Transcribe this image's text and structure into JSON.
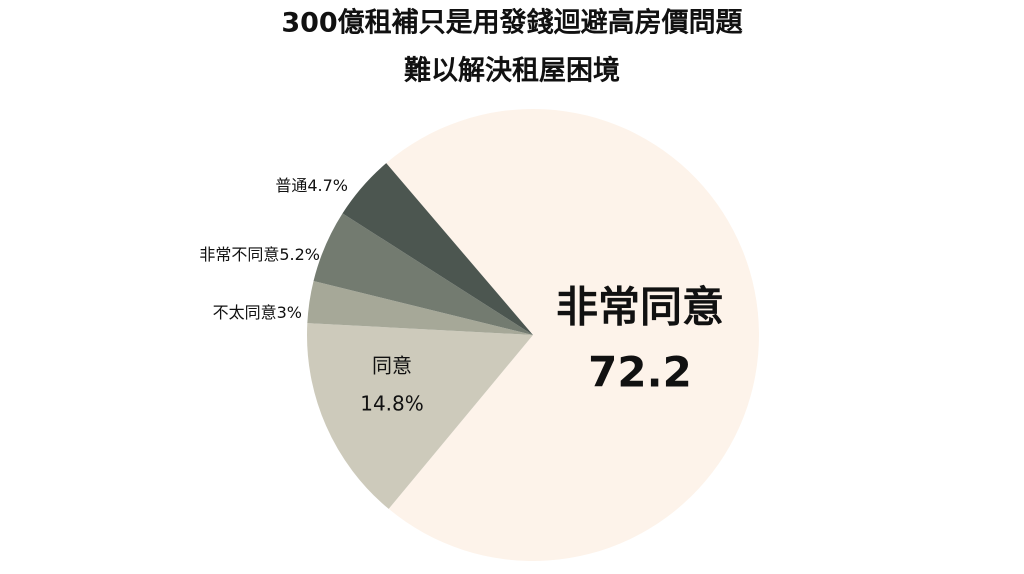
{
  "chart_data": {
    "type": "pie",
    "title": [
      "300億租補只是用發錢迴避高房價問題",
      "難以解決租屋困境"
    ],
    "categories": [
      "非常同意",
      "同意",
      "不太同意",
      "非常不同意",
      "普通"
    ],
    "values": [
      72.2,
      14.8,
      3,
      5.2,
      4.7
    ],
    "value_labels": [
      "72.2",
      "14.8%",
      "3%",
      "5.2%",
      "4.7%"
    ],
    "colors": [
      "#fdf3ea",
      "#cdcabb",
      "#a6a898",
      "#737b70",
      "#4c5650"
    ]
  }
}
